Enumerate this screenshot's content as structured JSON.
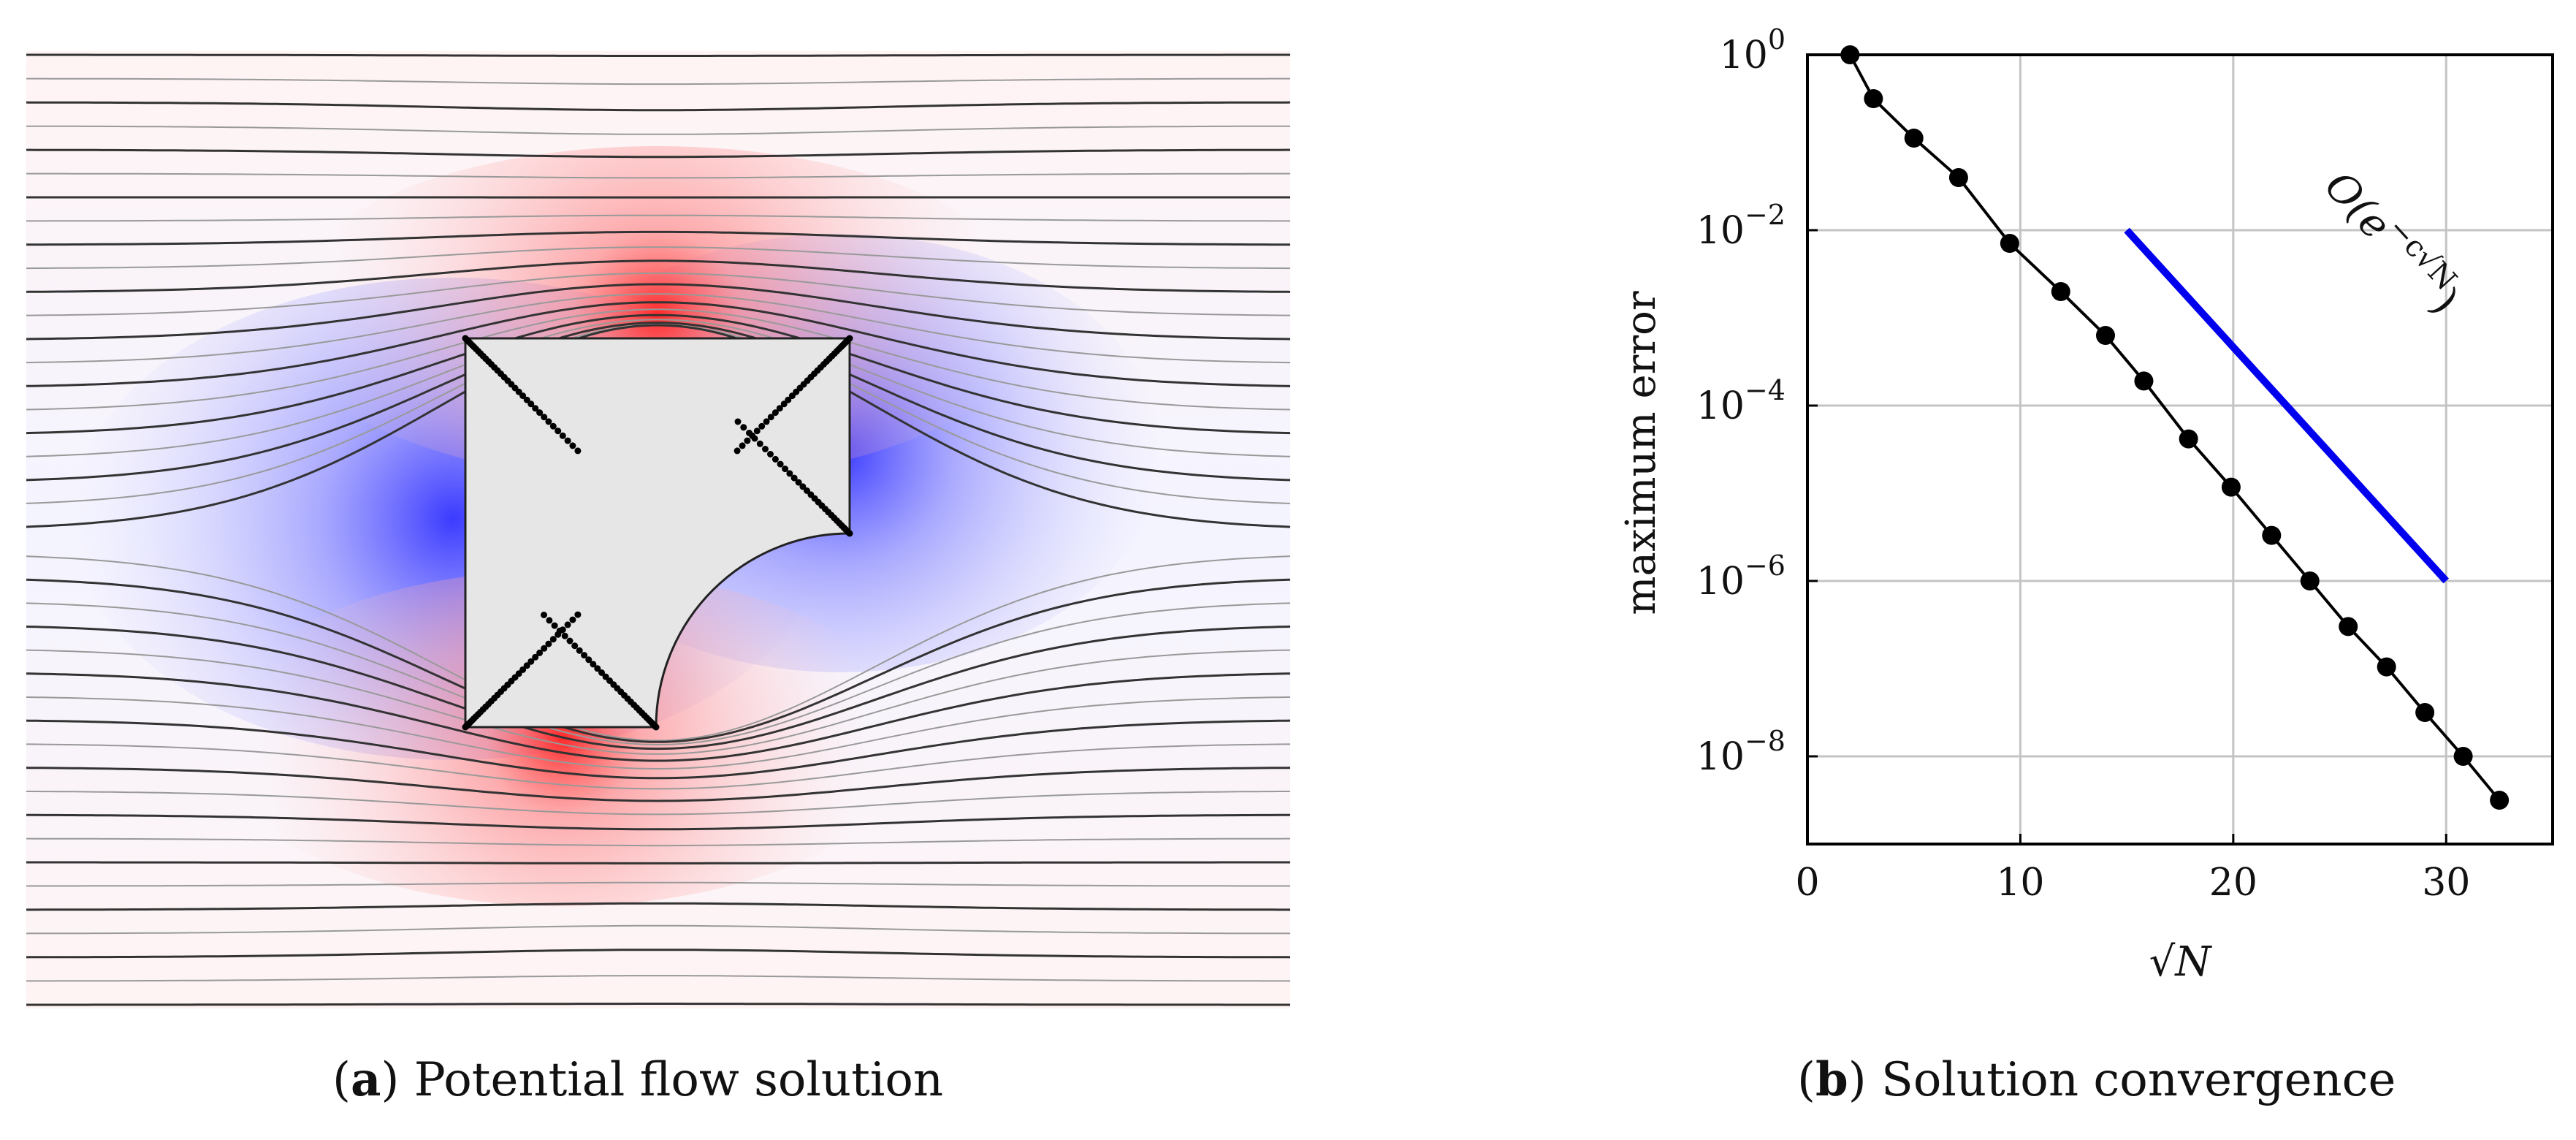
{
  "panel_a": {
    "caption_label": "a",
    "caption_text": " Potential flow solution",
    "colors": {
      "low_speed": "#3b3bff",
      "high_speed": "#ff3b3b",
      "streamline_dark": "#333333",
      "streamline_light": "#999999",
      "obstacle_fill": "#e6e6e6",
      "pole_dots": "#000000"
    }
  },
  "chart_data": {
    "type": "scatter",
    "caption_label": "b",
    "caption_text": " Solution convergence",
    "xlabel": "√N",
    "ylabel": "maximum error",
    "xlim": [
      0,
      35
    ],
    "ylim_log10": [
      -9,
      0
    ],
    "yscale": "log",
    "grid": true,
    "xticks": [
      0,
      10,
      20,
      30
    ],
    "yticks_log10": [
      0,
      -2,
      -4,
      -6,
      -8
    ],
    "series": [
      {
        "x": [
          2.0,
          3.1,
          5.0,
          7.1,
          9.5,
          11.9,
          14.0,
          15.8,
          17.9,
          19.9,
          21.8,
          23.6,
          25.4,
          27.2,
          29.0,
          30.8,
          32.5
        ],
        "y_log10": [
          0.0,
          -0.5,
          -0.95,
          -1.4,
          -2.15,
          -2.7,
          -3.2,
          -3.72,
          -4.38,
          -4.93,
          -5.48,
          -6.0,
          -6.52,
          -6.98,
          -7.5,
          -8.0,
          -8.5
        ],
        "color": "#000000"
      }
    ],
    "reference_line": {
      "x": [
        15,
        30
      ],
      "y_log10": [
        -2,
        -6
      ],
      "color": "#0000ee",
      "label_prefix": "O(e",
      "label_exp": "−c√N",
      "label_suffix": ")"
    }
  }
}
